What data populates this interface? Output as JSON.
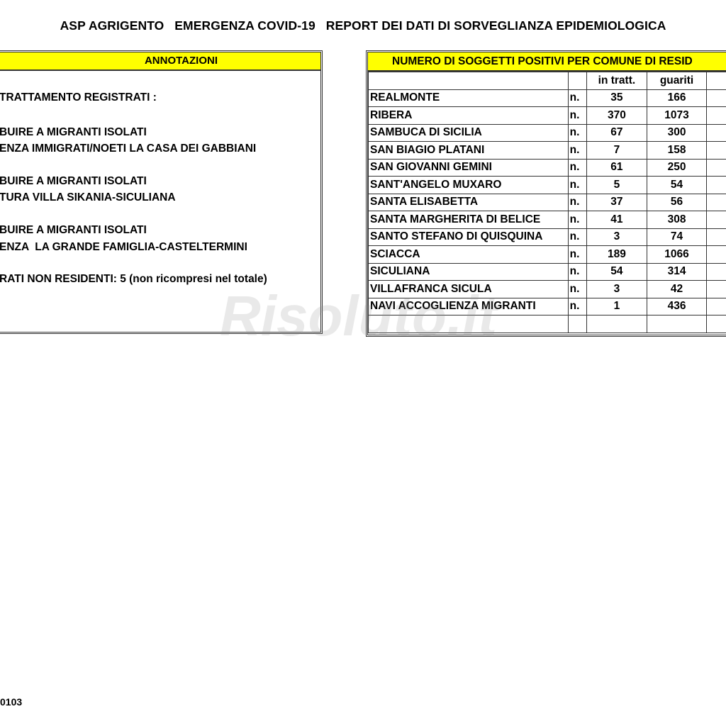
{
  "title": "ASP AGRIGENTO   EMERGENZA COVID-19   REPORT DEI DATI DI SORVEGLIANZA EPIDEMIOLOGICA",
  "annotations": {
    "header": "ANNOTAZIONI",
    "lines": [
      "TRATTAMENTO REGISTRATI :",
      "BUIRE A MIGRANTI ISOLATI",
      "ENZA IMMIGRATI/NOETI LA CASA DEI GABBIANI",
      "BUIRE A MIGRANTI ISOLATI",
      "TURA VILLA SIKANIA-SICULIANA",
      "BUIRE A MIGRANTI ISOLATI",
      "ENZA  LA GRANDE FAMIGLIA-CASTELTERMINI",
      "RATI NON RESIDENTI: 5 (non ricompresi nel totale)"
    ]
  },
  "table": {
    "header": "NUMERO DI SOGGETTI POSITIVI PER COMUNE DI RESID",
    "columns": [
      "in tratt.",
      "guariti"
    ],
    "unit": "n.",
    "rows": [
      {
        "name": "REALMONTE",
        "in_tratt": "35",
        "guariti": "166"
      },
      {
        "name": "RIBERA",
        "in_tratt": "370",
        "guariti": "1073"
      },
      {
        "name": "SAMBUCA DI SICILIA",
        "in_tratt": "67",
        "guariti": "300"
      },
      {
        "name": "SAN BIAGIO PLATANI",
        "in_tratt": "7",
        "guariti": "158"
      },
      {
        "name": "SAN GIOVANNI GEMINI",
        "in_tratt": "61",
        "guariti": "250"
      },
      {
        "name": "SANT'ANGELO MUXARO",
        "in_tratt": "5",
        "guariti": "54"
      },
      {
        "name": "SANTA ELISABETTA",
        "in_tratt": "37",
        "guariti": "56"
      },
      {
        "name": "SANTA MARGHERITA DI BELICE",
        "in_tratt": "41",
        "guariti": "308"
      },
      {
        "name": "SANTO STEFANO DI QUISQUINA",
        "in_tratt": "3",
        "guariti": "74"
      },
      {
        "name": "SCIACCA",
        "in_tratt": "189",
        "guariti": "1066"
      },
      {
        "name": "SICULIANA",
        "in_tratt": "54",
        "guariti": "314"
      },
      {
        "name": "VILLAFRANCA SICULA",
        "in_tratt": "3",
        "guariti": "42"
      },
      {
        "name": "NAVI ACCOGLIENZA MIGRANTI",
        "in_tratt": "1",
        "guariti": "436"
      }
    ]
  },
  "footer": "0103",
  "watermark": "Risoluto.it",
  "colors": {
    "header_fill": "#ffff00"
  }
}
